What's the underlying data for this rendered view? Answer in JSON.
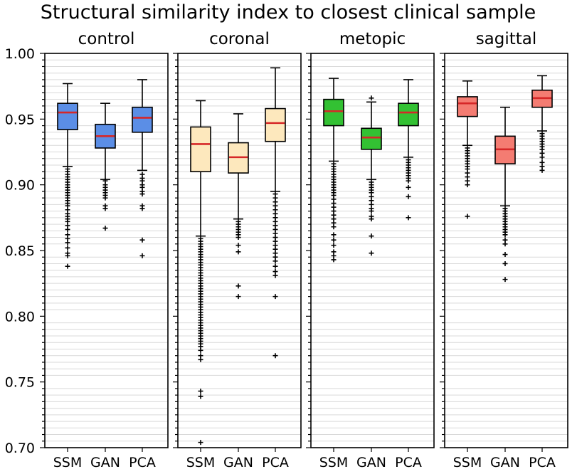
{
  "chart_data": {
    "type": "boxplot",
    "title": "Structural similarity index to closest clinical sample",
    "ylim": [
      0.7,
      1.0
    ],
    "yticks": [
      "0.70",
      "0.75",
      "0.80",
      "0.85",
      "0.90",
      "0.95",
      "1.00"
    ],
    "categories": [
      "SSM",
      "GAN",
      "PCA"
    ],
    "grid": "horizontal minor",
    "median_color": "#d62728",
    "panels": [
      {
        "name": "control",
        "color": "#5b8ee6",
        "boxes": [
          {
            "category": "SSM",
            "q1": 0.942,
            "median": 0.955,
            "q3": 0.962,
            "whislo": 0.914,
            "whishi": 0.977,
            "outliers": [
              0.912,
              0.91,
              0.908,
              0.906,
              0.904,
              0.902,
              0.9,
              0.898,
              0.896,
              0.894,
              0.892,
              0.89,
              0.888,
              0.886,
              0.884,
              0.881,
              0.878,
              0.876,
              0.874,
              0.872,
              0.869,
              0.866,
              0.862,
              0.859,
              0.856,
              0.852,
              0.848,
              0.846,
              0.838
            ]
          },
          {
            "category": "GAN",
            "q1": 0.928,
            "median": 0.937,
            "q3": 0.946,
            "whislo": 0.904,
            "whishi": 0.962,
            "outliers": [
              0.903,
              0.9,
              0.898,
              0.896,
              0.894,
              0.892,
              0.89,
              0.884,
              0.882,
              0.867
            ]
          },
          {
            "category": "PCA",
            "q1": 0.94,
            "median": 0.951,
            "q3": 0.959,
            "whislo": 0.911,
            "whishi": 0.98,
            "outliers": [
              0.908,
              0.905,
              0.903,
              0.9,
              0.898,
              0.895,
              0.893,
              0.884,
              0.882,
              0.858,
              0.846
            ]
          }
        ]
      },
      {
        "name": "coronal",
        "color": "#fde8bd",
        "boxes": [
          {
            "category": "SSM",
            "q1": 0.91,
            "median": 0.931,
            "q3": 0.944,
            "whislo": 0.861,
            "whishi": 0.964,
            "outliers": [
              0.859,
              0.857,
              0.855,
              0.853,
              0.851,
              0.849,
              0.847,
              0.845,
              0.843,
              0.841,
              0.839,
              0.837,
              0.835,
              0.833,
              0.831,
              0.829,
              0.827,
              0.825,
              0.823,
              0.821,
              0.819,
              0.817,
              0.815,
              0.813,
              0.811,
              0.809,
              0.807,
              0.805,
              0.803,
              0.801,
              0.799,
              0.797,
              0.795,
              0.793,
              0.791,
              0.789,
              0.787,
              0.785,
              0.783,
              0.781,
              0.779,
              0.777,
              0.774,
              0.77,
              0.767,
              0.743,
              0.739,
              0.704
            ]
          },
          {
            "category": "GAN",
            "q1": 0.909,
            "median": 0.921,
            "q3": 0.932,
            "whislo": 0.874,
            "whishi": 0.954,
            "outliers": [
              0.872,
              0.87,
              0.868,
              0.866,
              0.864,
              0.862,
              0.86,
              0.854,
              0.849,
              0.823,
              0.815
            ]
          },
          {
            "category": "PCA",
            "q1": 0.933,
            "median": 0.947,
            "q3": 0.958,
            "whislo": 0.895,
            "whishi": 0.989,
            "outliers": [
              0.893,
              0.89,
              0.887,
              0.884,
              0.881,
              0.878,
              0.875,
              0.872,
              0.869,
              0.866,
              0.863,
              0.86,
              0.857,
              0.854,
              0.851,
              0.848,
              0.845,
              0.842,
              0.838,
              0.834,
              0.831,
              0.815,
              0.77
            ]
          }
        ]
      },
      {
        "name": "metopic",
        "color": "#33c133",
        "boxes": [
          {
            "category": "SSM",
            "q1": 0.945,
            "median": 0.956,
            "q3": 0.965,
            "whislo": 0.918,
            "whishi": 0.981,
            "outliers": [
              0.916,
              0.914,
              0.912,
              0.91,
              0.908,
              0.906,
              0.904,
              0.902,
              0.9,
              0.898,
              0.896,
              0.894,
              0.892,
              0.889,
              0.886,
              0.883,
              0.88,
              0.877,
              0.874,
              0.871,
              0.868,
              0.862,
              0.858,
              0.854,
              0.849,
              0.846,
              0.843
            ]
          },
          {
            "category": "GAN",
            "q1": 0.927,
            "median": 0.936,
            "q3": 0.943,
            "whislo": 0.904,
            "whishi": 0.963,
            "outliers": [
              0.966,
              0.902,
              0.9,
              0.898,
              0.896,
              0.894,
              0.891,
              0.888,
              0.885,
              0.882,
              0.88,
              0.876,
              0.874,
              0.861,
              0.848
            ]
          },
          {
            "category": "PCA",
            "q1": 0.945,
            "median": 0.955,
            "q3": 0.962,
            "whislo": 0.921,
            "whishi": 0.98,
            "outliers": [
              0.919,
              0.917,
              0.915,
              0.913,
              0.911,
              0.909,
              0.907,
              0.905,
              0.903,
              0.898,
              0.891,
              0.875
            ]
          }
        ]
      },
      {
        "name": "sagittal",
        "color": "#f47c72",
        "boxes": [
          {
            "category": "SSM",
            "q1": 0.952,
            "median": 0.962,
            "q3": 0.967,
            "whislo": 0.93,
            "whishi": 0.979,
            "outliers": [
              0.928,
              0.926,
              0.924,
              0.922,
              0.92,
              0.918,
              0.916,
              0.914,
              0.912,
              0.909,
              0.906,
              0.903,
              0.9,
              0.876
            ]
          },
          {
            "category": "GAN",
            "q1": 0.916,
            "median": 0.927,
            "q3": 0.937,
            "whislo": 0.884,
            "whishi": 0.959,
            "outliers": [
              0.882,
              0.88,
              0.878,
              0.876,
              0.874,
              0.872,
              0.87,
              0.868,
              0.866,
              0.864,
              0.862,
              0.858,
              0.855,
              0.847,
              0.84,
              0.828
            ]
          },
          {
            "category": "PCA",
            "q1": 0.959,
            "median": 0.966,
            "q3": 0.972,
            "whislo": 0.941,
            "whishi": 0.983,
            "outliers": [
              0.939,
              0.937,
              0.935,
              0.933,
              0.931,
              0.929,
              0.927,
              0.924,
              0.921,
              0.917,
              0.914,
              0.911
            ]
          }
        ]
      }
    ]
  }
}
